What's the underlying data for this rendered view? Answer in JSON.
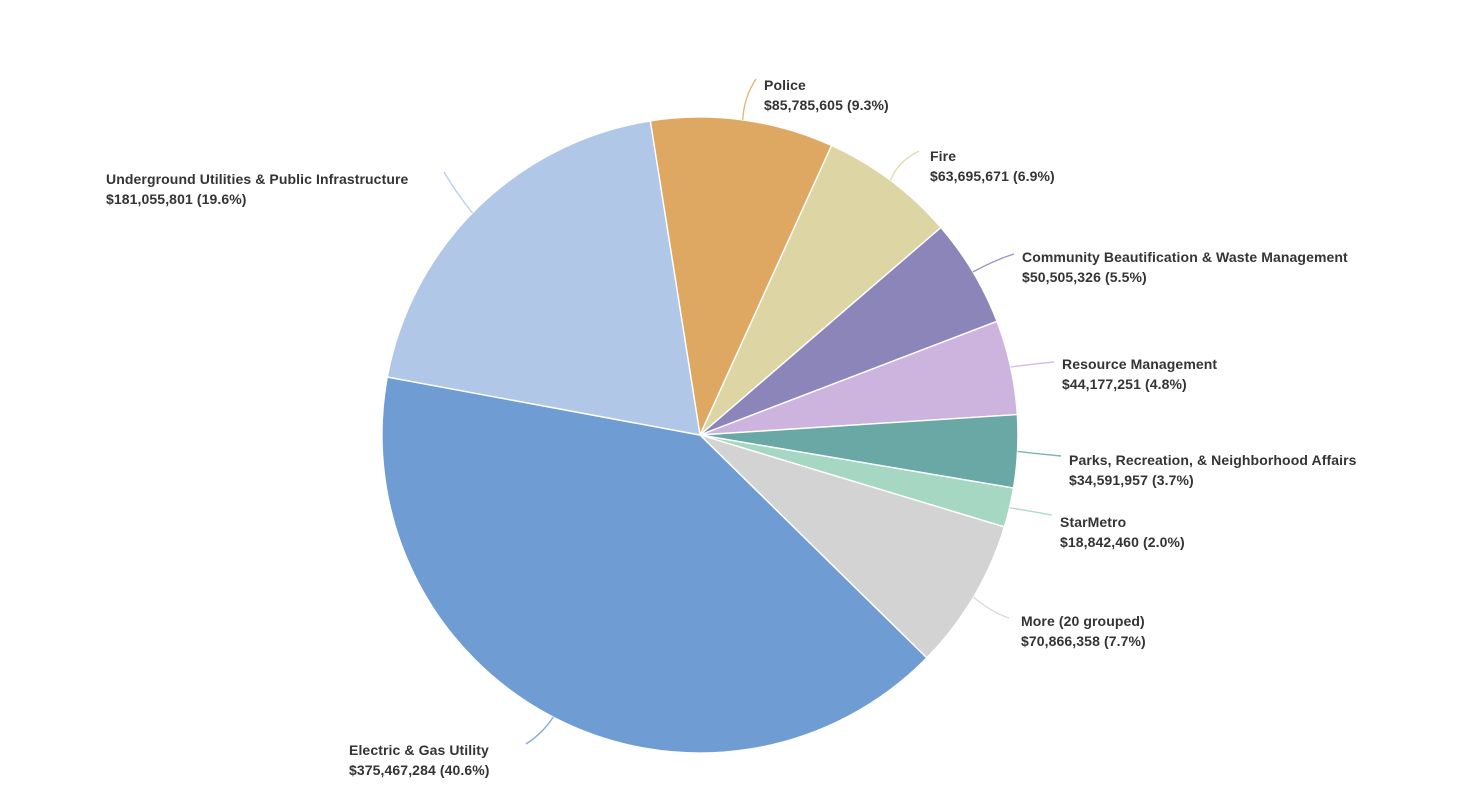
{
  "page": {
    "background_color": "#ffffff",
    "text_color": "#343434"
  },
  "chart_data": {
    "type": "pie",
    "title": "",
    "units": "USD",
    "direction": "clockwise",
    "start_angle_deg": -9,
    "legend_position": "none",
    "labels_style": "outside-callout",
    "slices": [
      {
        "label": "Police",
        "value": 85785605,
        "value_label": "$85,785,605",
        "pct": 9.3,
        "pct_label": "9.3%",
        "color": "#DFA862"
      },
      {
        "label": "Fire",
        "value": 63695671,
        "value_label": "$63,695,671",
        "pct": 6.9,
        "pct_label": "6.9%",
        "color": "#DDD5A4"
      },
      {
        "label": "Community Beautification & Waste Management",
        "value": 50505326,
        "value_label": "$50,505,326",
        "pct": 5.5,
        "pct_label": "5.5%",
        "color": "#8C85BA"
      },
      {
        "label": "Resource Management",
        "value": 44177251,
        "value_label": "$44,177,251",
        "pct": 4.8,
        "pct_label": "4.8%",
        "color": "#CDB4DE"
      },
      {
        "label": "Parks, Recreation, & Neighborhood Affairs",
        "value": 34591957,
        "value_label": "$34,591,957",
        "pct": 3.7,
        "pct_label": "3.7%",
        "color": "#6AA8A5"
      },
      {
        "label": "StarMetro",
        "value": 18842460,
        "value_label": "$18,842,460",
        "pct": 2.0,
        "pct_label": "2.0%",
        "color": "#A6D7C2"
      },
      {
        "label": "More (20 grouped)",
        "value": 70866358,
        "value_label": "$70,866,358",
        "pct": 7.7,
        "pct_label": "7.7%",
        "color": "#D3D3D3"
      },
      {
        "label": "Electric & Gas Utility",
        "value": 375467284,
        "value_label": "$375,467,284",
        "pct": 40.6,
        "pct_label": "40.6%",
        "color": "#6F9DD3"
      },
      {
        "label": "Underground Utilities & Public Infrastructure",
        "value": 181055801,
        "value_label": "$181,055,801",
        "pct": 19.6,
        "pct_label": "19.6%",
        "color": "#B0C7E8"
      }
    ]
  }
}
